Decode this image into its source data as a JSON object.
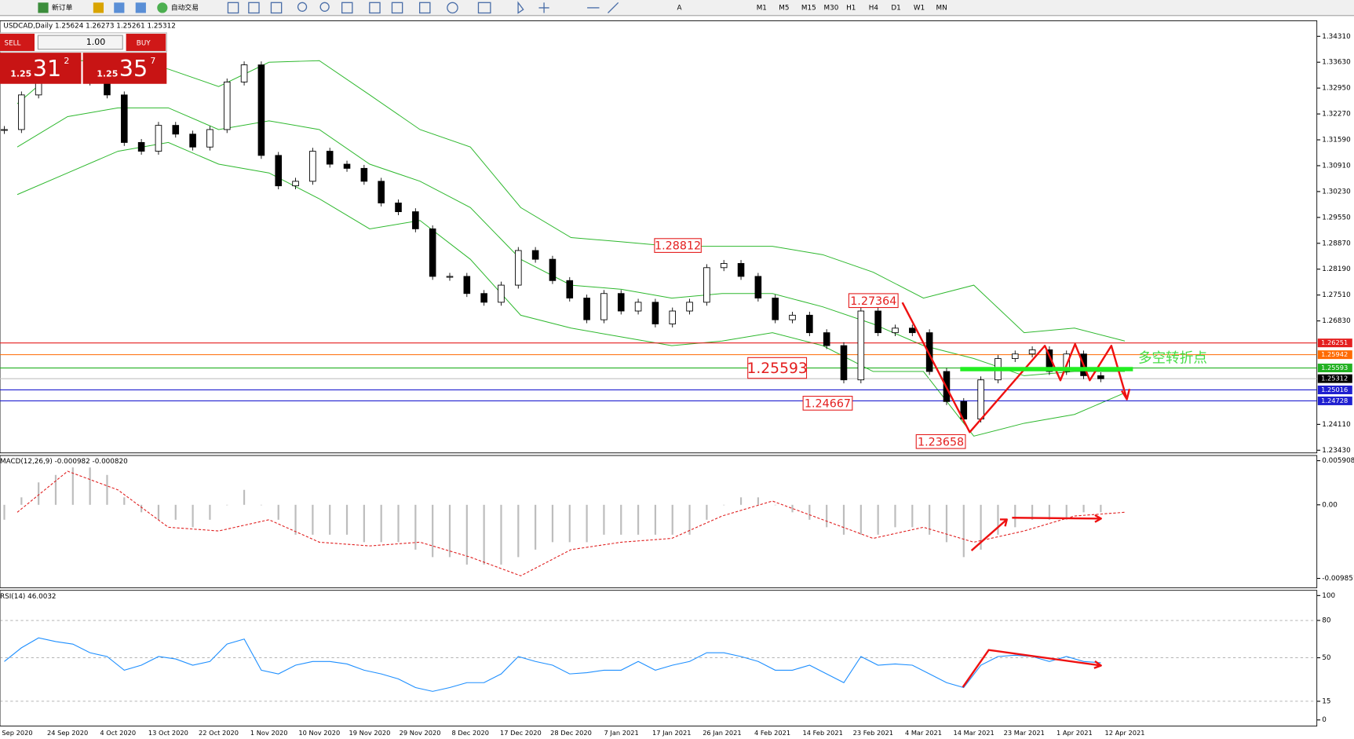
{
  "toolbar": {
    "new_order": "新订单",
    "auto_trade": "自动交易",
    "timeframes": [
      "M1",
      "M5",
      "M15",
      "M30",
      "H1",
      "H4",
      "D1",
      "W1",
      "MN"
    ]
  },
  "trade_panel": {
    "sell": "SELL",
    "buy": "BUY",
    "lots": "1.00",
    "sell_big": "1.25",
    "sell_pips": "31",
    "sell_frac": "2",
    "buy_big": "1.25",
    "buy_pips": "35",
    "buy_frac": "7"
  },
  "chart_data": [
    {
      "type": "candlestick",
      "title": "USDCAD,Daily 1.25624 1.26273 1.25261 1.25312",
      "x_labels": [
        "Sep 2020",
        "24 Sep 2020",
        "4 Oct 2020",
        "13 Oct 2020",
        "22 Oct 2020",
        "1 Nov 2020",
        "10 Nov 2020",
        "19 Nov 2020",
        "29 Nov 2020",
        "8 Dec 2020",
        "17 Dec 2020",
        "28 Dec 2020",
        "7 Jan 2021",
        "17 Jan 2021",
        "26 Jan 2021",
        "4 Feb 2021",
        "14 Feb 2021",
        "23 Feb 2021",
        "4 Mar 2021",
        "14 Mar 2021",
        "23 Mar 2021",
        "1 Apr 2021",
        "12 Apr 2021"
      ],
      "close": [
        1.3186,
        1.3277,
        1.3345,
        1.3345,
        1.3345,
        1.3311,
        1.3277,
        1.3152,
        1.3129,
        1.3197,
        1.3174,
        1.314,
        1.3186,
        1.3311,
        1.3356,
        1.3118,
        1.3038,
        1.305,
        1.3129,
        1.3095,
        1.3084,
        1.305,
        1.2993,
        1.297,
        1.2925,
        1.28,
        1.28,
        1.2755,
        1.2732,
        1.2777,
        1.2868,
        1.2845,
        1.2789,
        1.2743,
        1.2686,
        1.2755,
        1.2709,
        1.2732,
        1.2675,
        1.2709,
        1.2732,
        1.2823,
        1.2834,
        1.28,
        1.2743,
        1.2686,
        1.2698,
        1.2652,
        1.2618,
        1.2528,
        1.2709,
        1.2652,
        1.2664,
        1.2652,
        1.255,
        1.2471,
        1.2425,
        1.2528,
        1.2584,
        1.2596,
        1.2607,
        1.255,
        1.2596,
        1.2539,
        1.2531
      ],
      "bands": {
        "color": "#2eb82e",
        "upper": [
          1.3254,
          1.3367,
          1.3367,
          1.3345,
          1.3299,
          1.3363,
          1.3367,
          1.3277,
          1.3186,
          1.314,
          1.2981,
          1.2902,
          1.2891,
          1.2879,
          1.2879,
          1.2879,
          1.2857,
          1.2811,
          1.2743,
          1.2777,
          1.2652,
          1.2664,
          1.263
        ],
        "middle": [
          1.314,
          1.322,
          1.3243,
          1.3243,
          1.3186,
          1.3209,
          1.3186,
          1.3095,
          1.305,
          1.2981,
          1.2845,
          1.2777,
          1.2766,
          1.2743,
          1.2755,
          1.2755,
          1.272,
          1.2675,
          1.2618,
          1.2584,
          1.2539,
          1.255,
          1.255
        ],
        "lower": [
          1.3015,
          1.3072,
          1.3129,
          1.3152,
          1.3095,
          1.3072,
          1.3004,
          1.2925,
          1.2947,
          1.2845,
          1.2698,
          1.2664,
          1.2641,
          1.2618,
          1.263,
          1.2652,
          1.2618,
          1.255,
          1.255,
          1.238,
          1.2414,
          1.2437,
          1.2494
        ]
      },
      "ylim": [
        1.2336,
        1.3472
      ],
      "yticks": [
        {
          "value": 1.3431,
          "label": "1.34310"
        },
        {
          "value": 1.3363,
          "label": "1.33630"
        },
        {
          "value": 1.3295,
          "label": "1.32950"
        },
        {
          "value": 1.3227,
          "label": "1.32270"
        },
        {
          "value": 1.3159,
          "label": "1.31590"
        },
        {
          "value": 1.3091,
          "label": "1.30910"
        },
        {
          "value": 1.3023,
          "label": "1.30230"
        },
        {
          "value": 1.2955,
          "label": "1.29550"
        },
        {
          "value": 1.2887,
          "label": "1.28870"
        },
        {
          "value": 1.2819,
          "label": "1.28190"
        },
        {
          "value": 1.2751,
          "label": "1.27510"
        },
        {
          "value": 1.2683,
          "label": "1.26830"
        },
        {
          "value": 1.2411,
          "label": "1.24110"
        },
        {
          "value": 1.2343,
          "label": "1.23430"
        }
      ],
      "hlines": [
        {
          "value": 1.26251,
          "color": "#e41e1e"
        },
        {
          "value": 1.25942,
          "color": "#ff6a00"
        },
        {
          "value": 1.25593,
          "color": "#22b122"
        },
        {
          "value": 1.25312,
          "color": "#000000"
        },
        {
          "value": 1.25016,
          "color": "#1f1fd0"
        },
        {
          "value": 1.24728,
          "color": "#1f1fd0"
        }
      ],
      "annotations": [
        1.28812,
        1.27364,
        1.25593,
        1.24667,
        1.23658
      ],
      "note": "多空转折点"
    },
    {
      "type": "macd",
      "title": "MACD(12,26,9) -0.000982 -0.000820",
      "histogram": [
        -0.002,
        0.001,
        0.003,
        0.004,
        0.005,
        0.005,
        0.004,
        0.001,
        -0.001,
        -0.002,
        -0.002,
        -0.003,
        -0.002,
        0.0,
        0.002,
        0.0,
        -0.002,
        -0.004,
        -0.004,
        -0.004,
        -0.004,
        -0.005,
        -0.005,
        -0.005,
        -0.006,
        -0.007,
        -0.007,
        -0.008,
        -0.008,
        -0.008,
        -0.007,
        -0.006,
        -0.005,
        -0.005,
        -0.005,
        -0.004,
        -0.004,
        -0.004,
        -0.004,
        -0.004,
        -0.004,
        -0.002,
        0.0,
        0.001,
        0.001,
        0.0,
        -0.001,
        -0.002,
        -0.003,
        -0.004,
        -0.004,
        -0.004,
        -0.003,
        -0.003,
        -0.004,
        -0.005,
        -0.007,
        -0.006,
        -0.004,
        -0.003,
        -0.002,
        -0.002,
        -0.002,
        -0.001,
        -0.001
      ],
      "signal": [
        -0.001,
        0.0045,
        0.002,
        -0.003,
        -0.0035,
        -0.002,
        -0.005,
        -0.0055,
        -0.005,
        -0.007,
        -0.0095,
        -0.006,
        -0.005,
        -0.0045,
        -0.0015,
        0.0005,
        -0.002,
        -0.0045,
        -0.003,
        -0.005,
        -0.0035,
        -0.0015,
        -0.001
      ],
      "ylim": [
        -0.0111,
        0.0066
      ],
      "yticks": [
        0.005908,
        {
          "value": 0,
          "label": "0.00"
        },
        -0.009851
      ]
    },
    {
      "type": "rsi",
      "title": "RSI(14) 46.0032",
      "values": [
        47,
        58,
        66,
        63,
        61,
        54,
        51,
        40,
        44,
        51,
        49,
        44,
        47,
        61,
        65,
        40,
        37,
        44,
        47,
        47,
        45,
        40,
        37,
        33,
        26,
        23,
        26,
        30,
        30,
        37,
        51,
        47,
        44,
        37,
        38,
        40,
        40,
        47,
        40,
        44,
        47,
        54,
        54,
        51,
        47,
        40,
        40,
        44,
        37,
        30,
        51,
        44,
        45,
        44,
        37,
        30,
        26,
        44,
        51,
        52,
        51,
        47,
        51,
        47,
        46
      ],
      "ylim": [
        -4.9,
        104.2
      ],
      "yticks": [
        100,
        80,
        50,
        15,
        0
      ]
    }
  ]
}
